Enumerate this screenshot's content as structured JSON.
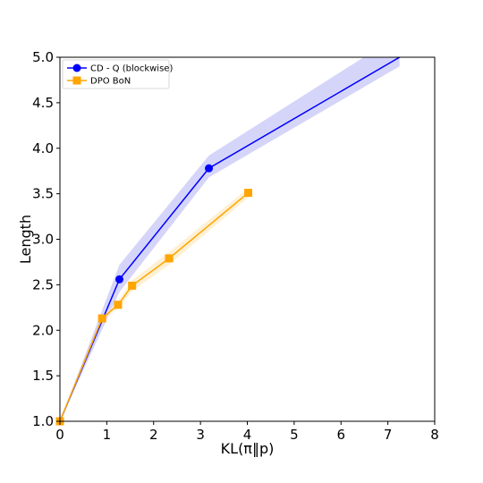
{
  "chart_data": {
    "type": "line",
    "title": "",
    "xlabel": "KL(π‖p)",
    "ylabel": "Length",
    "xlim": [
      0,
      8
    ],
    "ylim": [
      1.0,
      5.0
    ],
    "x_ticks": [
      "0",
      "1",
      "2",
      "3",
      "4",
      "5",
      "6",
      "7",
      "8"
    ],
    "y_ticks": [
      "1.0",
      "1.5",
      "2.0",
      "2.5",
      "3.0",
      "3.5",
      "4.0",
      "4.5",
      "5.0"
    ],
    "grid": false,
    "legend_position": "top-left",
    "series": [
      {
        "name": "CD - Q (blockwise)",
        "color": "#0000ff",
        "band_color": "#b3b3f5",
        "marker": "circle",
        "x": [
          0.0,
          1.27,
          3.18,
          7.25
        ],
        "y": [
          1.0,
          2.56,
          3.78,
          5.0
        ],
        "y_lower": [
          1.0,
          2.42,
          3.68,
          4.9
        ],
        "y_upper": [
          1.0,
          2.72,
          3.92,
          5.25
        ],
        "markers_at": [
          0,
          1,
          2
        ]
      },
      {
        "name": "DPO BoN",
        "color": "#ffa500",
        "band_color": "#fde3b0",
        "marker": "square",
        "x": [
          0.0,
          0.9,
          1.24,
          1.54,
          2.33,
          4.02
        ],
        "y": [
          1.0,
          2.13,
          2.28,
          2.49,
          2.79,
          3.51
        ],
        "y_lower": [
          1.0,
          2.1,
          2.24,
          2.43,
          2.72,
          3.46
        ],
        "y_upper": [
          1.0,
          2.16,
          2.32,
          2.55,
          2.86,
          3.56
        ],
        "markers_at": [
          0,
          1,
          2,
          3,
          4,
          5
        ]
      }
    ]
  }
}
